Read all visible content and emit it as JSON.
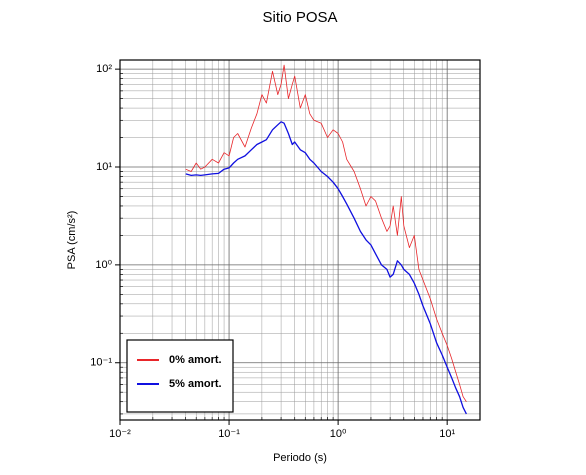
{
  "chart_data": {
    "type": "line",
    "title": "Sitio POSA",
    "x_label": "Periodo (s)",
    "y_label": "PSA (cm/s²)",
    "log_x": true,
    "log_y": true,
    "grid": true,
    "minor_grid": true,
    "legend_position": "lower left",
    "xlim": [
      0.01,
      20
    ],
    "ylim": [
      0.026,
      124
    ],
    "xticks": [
      {
        "value": 0.01,
        "label": "10⁻²"
      },
      {
        "value": 0.1,
        "label": "10⁻¹"
      },
      {
        "value": 1,
        "label": "10⁰"
      },
      {
        "value": 10,
        "label": "10¹"
      }
    ],
    "yticks": [
      {
        "value": 0.1,
        "label": "10⁻¹"
      },
      {
        "value": 1,
        "label": "10⁰"
      },
      {
        "value": 10,
        "label": "10¹"
      },
      {
        "value": 100,
        "label": "10²"
      }
    ],
    "x": [
      0.04,
      0.045,
      0.05,
      0.055,
      0.06,
      0.07,
      0.08,
      0.09,
      0.1,
      0.11,
      0.12,
      0.14,
      0.16,
      0.18,
      0.2,
      0.22,
      0.25,
      0.28,
      0.3,
      0.32,
      0.35,
      0.38,
      0.4,
      0.45,
      0.5,
      0.55,
      0.6,
      0.7,
      0.8,
      0.9,
      1.0,
      1.1,
      1.2,
      1.4,
      1.6,
      1.8,
      2.0,
      2.2,
      2.5,
      2.8,
      3.0,
      3.2,
      3.5,
      3.8,
      4.0,
      4.5,
      5.0,
      5.5,
      6.0,
      7.0,
      8.0,
      9.0,
      10,
      11,
      12,
      13,
      14,
      15
    ],
    "series": [
      {
        "name": "0% amort.",
        "color": "#e8262a",
        "width": 0.8,
        "values": [
          9.5,
          9.0,
          11,
          9.5,
          10,
          12,
          11,
          14,
          13,
          20,
          22,
          16,
          25,
          35,
          55,
          45,
          95,
          55,
          70,
          110,
          50,
          70,
          85,
          40,
          55,
          35,
          30,
          28,
          20,
          24,
          22,
          18,
          12,
          9,
          6,
          4,
          5,
          4.5,
          3,
          2.2,
          2.5,
          4,
          2,
          5,
          2.5,
          1.5,
          2,
          0.9,
          0.7,
          0.45,
          0.28,
          0.2,
          0.15,
          0.11,
          0.08,
          0.06,
          0.045,
          0.04
        ]
      },
      {
        "name": "5% amort.",
        "color": "#1010e0",
        "width": 1.3,
        "values": [
          8.5,
          8.2,
          8.3,
          8.2,
          8.3,
          8.5,
          8.6,
          9.5,
          9.8,
          11,
          12,
          13,
          15,
          17,
          18,
          19,
          24,
          27,
          29,
          28,
          22,
          17,
          18,
          15,
          14,
          12,
          11,
          9,
          8,
          7,
          6,
          5,
          4.2,
          3,
          2.2,
          1.8,
          1.6,
          1.3,
          1.0,
          0.9,
          0.75,
          0.8,
          1.1,
          1.0,
          0.9,
          0.8,
          0.65,
          0.5,
          0.38,
          0.25,
          0.16,
          0.12,
          0.09,
          0.07,
          0.055,
          0.045,
          0.035,
          0.03
        ]
      }
    ]
  }
}
